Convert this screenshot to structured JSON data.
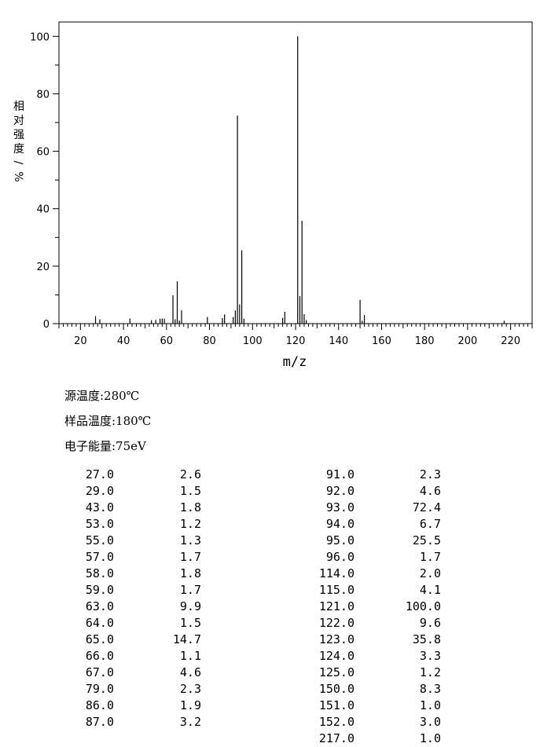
{
  "chart_data": {
    "type": "bar",
    "xlabel": "m/z",
    "ylabel": "相对强度/%",
    "xlim": [
      10,
      230
    ],
    "ylim": [
      0,
      105
    ],
    "x_ticks": [
      20,
      40,
      60,
      80,
      100,
      120,
      140,
      160,
      180,
      200,
      220
    ],
    "y_ticks": [
      0,
      20,
      40,
      60,
      80,
      100
    ],
    "x": [
      27,
      29,
      43,
      53,
      55,
      57,
      58,
      59,
      63,
      64,
      65,
      66,
      67,
      79,
      86,
      87,
      91,
      92,
      93,
      94,
      95,
      96,
      114,
      115,
      121,
      122,
      123,
      124,
      125,
      150,
      151,
      152,
      217
    ],
    "values": [
      2.6,
      1.5,
      1.8,
      1.2,
      1.3,
      1.7,
      1.8,
      1.7,
      9.9,
      1.5,
      14.7,
      1.1,
      4.6,
      2.3,
      1.9,
      3.2,
      2.3,
      4.6,
      72.4,
      6.7,
      25.5,
      1.7,
      2.0,
      4.1,
      100.0,
      9.6,
      35.8,
      3.3,
      1.2,
      8.3,
      1.0,
      3.0,
      1.0
    ]
  },
  "conditions": {
    "source_temp": "源温度:280℃",
    "sample_temp": "样品温度:180℃",
    "electron_energy": "电子能量:75eV"
  },
  "peaks_left": [
    [
      "27.0",
      "2.6"
    ],
    [
      "29.0",
      "1.5"
    ],
    [
      "43.0",
      "1.8"
    ],
    [
      "53.0",
      "1.2"
    ],
    [
      "55.0",
      "1.3"
    ],
    [
      "57.0",
      "1.7"
    ],
    [
      "58.0",
      "1.8"
    ],
    [
      "59.0",
      "1.7"
    ],
    [
      "63.0",
      "9.9"
    ],
    [
      "64.0",
      "1.5"
    ],
    [
      "65.0",
      "14.7"
    ],
    [
      "66.0",
      "1.1"
    ],
    [
      "67.0",
      "4.6"
    ],
    [
      "79.0",
      "2.3"
    ],
    [
      "86.0",
      "1.9"
    ],
    [
      "87.0",
      "3.2"
    ]
  ],
  "peaks_right": [
    [
      "91.0",
      "2.3"
    ],
    [
      "92.0",
      "4.6"
    ],
    [
      "93.0",
      "72.4"
    ],
    [
      "94.0",
      "6.7"
    ],
    [
      "95.0",
      "25.5"
    ],
    [
      "96.0",
      "1.7"
    ],
    [
      "114.0",
      "2.0"
    ],
    [
      "115.0",
      "4.1"
    ],
    [
      "121.0",
      "100.0"
    ],
    [
      "122.0",
      "9.6"
    ],
    [
      "123.0",
      "35.8"
    ],
    [
      "124.0",
      "3.3"
    ],
    [
      "125.0",
      "1.2"
    ],
    [
      "150.0",
      "8.3"
    ],
    [
      "151.0",
      "1.0"
    ],
    [
      "152.0",
      "3.0"
    ],
    [
      "217.0",
      "1.0"
    ]
  ]
}
